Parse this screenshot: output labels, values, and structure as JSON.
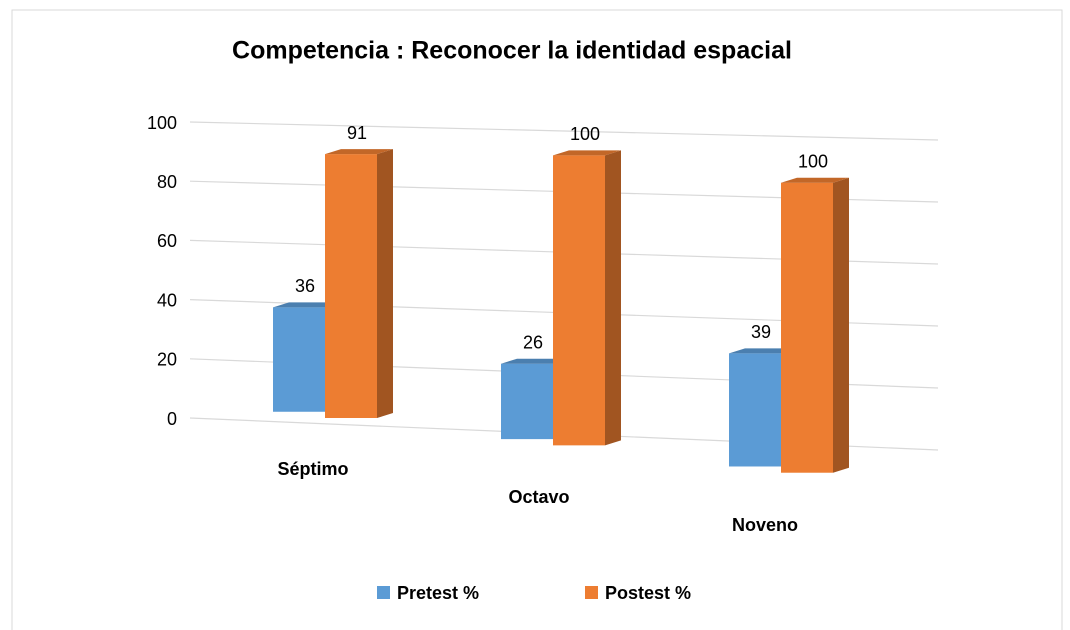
{
  "chart_data": {
    "type": "bar3d",
    "title": "Competencia : Reconocer la identidad espacial",
    "categories": [
      "Séptimo",
      "Octavo",
      "Noveno"
    ],
    "series": [
      {
        "name": "Pretest %",
        "color": "#5b9bd5",
        "values": [
          36,
          26,
          39
        ]
      },
      {
        "name": "Postest %",
        "color": "#ed7d31",
        "values": [
          91,
          100,
          100
        ]
      }
    ],
    "ylim": [
      0,
      100
    ],
    "yticks": [
      0,
      20,
      40,
      60,
      80,
      100
    ],
    "grid": true,
    "legend": "bottom"
  }
}
